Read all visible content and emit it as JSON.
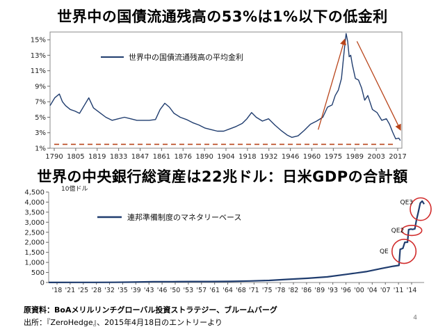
{
  "slide": {
    "title_top": "世界中の国債流通残高の53%は1%以下の低金利",
    "title_bottom": "世界の中央銀行総資産は22兆ドル：日米GDPの合計額",
    "footnote_source": "原資料：BoAメリルリンチグローバル投資ストラテジー、ブルームバーグ",
    "footnote_origin": "出所：『ZeroHedge』、2015年4月18日のエントリーより",
    "page_number": "4"
  },
  "chart_data": [
    {
      "type": "line",
      "legend": "世界中の国債流通残高の平均金利",
      "x_tick_labels": [
        "1790",
        "1805",
        "1819",
        "1833",
        "1847",
        "1861",
        "1876",
        "1890",
        "1904",
        "1918",
        "1932",
        "1946",
        "1960",
        "1975",
        "1989",
        "2003",
        "2017"
      ],
      "y_tick_labels": [
        "1%",
        "3%",
        "5%",
        "7%",
        "9%",
        "11%",
        "13%",
        "15%"
      ],
      "xlim": [
        1790,
        2017
      ],
      "ylim": [
        1,
        16
      ],
      "series": [
        {
          "color": "#1f3c6e",
          "x": [
            1790,
            1793,
            1796,
            1798,
            1800,
            1803,
            1806,
            1809,
            1812,
            1815,
            1818,
            1822,
            1826,
            1830,
            1834,
            1838,
            1842,
            1846,
            1850,
            1854,
            1858,
            1861,
            1864,
            1867,
            1870,
            1874,
            1878,
            1882,
            1886,
            1890,
            1894,
            1898,
            1902,
            1906,
            1910,
            1914,
            1917,
            1920,
            1923,
            1927,
            1931,
            1935,
            1939,
            1943,
            1946,
            1950,
            1954,
            1958,
            1962,
            1966,
            1969,
            1972,
            1974,
            1976,
            1978,
            1979,
            1980,
            1981,
            1982,
            1983,
            1984,
            1985,
            1987,
            1989,
            1991,
            1993,
            1995,
            1998,
            2001,
            2004,
            2007,
            2009,
            2011,
            2013,
            2015,
            2016
          ],
          "y": [
            6.5,
            7.5,
            8.0,
            7.0,
            6.5,
            6.0,
            5.8,
            5.5,
            6.5,
            7.5,
            6.2,
            5.6,
            5.0,
            4.6,
            4.8,
            5.0,
            4.8,
            4.6,
            4.6,
            4.6,
            4.7,
            6.0,
            6.8,
            6.3,
            5.5,
            5.0,
            4.7,
            4.3,
            4.0,
            3.6,
            3.4,
            3.2,
            3.2,
            3.5,
            3.8,
            4.2,
            4.8,
            5.6,
            5.0,
            4.5,
            4.8,
            4.0,
            3.3,
            2.7,
            2.4,
            2.6,
            3.3,
            4.1,
            4.5,
            5.0,
            6.3,
            6.6,
            7.8,
            8.5,
            10.0,
            12.0,
            14.0,
            15.8,
            14.8,
            12.8,
            13.0,
            11.8,
            10.0,
            9.8,
            8.8,
            7.2,
            7.8,
            6.0,
            5.6,
            4.6,
            4.8,
            4.1,
            3.1,
            2.2,
            2.3,
            2.0
          ]
        }
      ],
      "reference_line": {
        "y": 1.5,
        "style": "dashed",
        "color": "#b8441a"
      },
      "arrows": [
        {
          "from": [
            1963,
            3.4
          ],
          "to": [
            1980,
            15.0
          ],
          "color": "#b8441a"
        },
        {
          "from": [
            1988,
            14.8
          ],
          "to": [
            2016,
            3.4
          ],
          "color": "#b8441a"
        }
      ]
    },
    {
      "type": "line",
      "legend": "連邦準備制度のマネタリーベース",
      "unit_label": "10億ドル",
      "x_tick_labels": [
        "'18",
        "'21",
        "'25",
        "'28",
        "'32",
        "'35",
        "'39",
        "'43",
        "'46",
        "'50",
        "'53",
        "'57",
        "'61",
        "'64",
        "'68",
        "'71",
        "'75",
        "'78",
        "'82",
        "'86",
        "'89",
        "'93",
        "'96",
        "'00",
        "'04",
        "'07",
        "'11",
        "'14"
      ],
      "y_tick_labels": [
        "0",
        "500",
        "1,000",
        "1,500",
        "2,000",
        "2,500",
        "3,000",
        "3,500",
        "4,000",
        "4,500"
      ],
      "xlim": [
        1918,
        2015
      ],
      "ylim": [
        0,
        4500
      ],
      "series": [
        {
          "color": "#1f3c6e",
          "x": [
            1918,
            1925,
            1930,
            1935,
            1940,
            1945,
            1950,
            1955,
            1960,
            1965,
            1970,
            1975,
            1980,
            1985,
            1990,
            1995,
            2000,
            2004,
            2007,
            2008.5,
            2008.8,
            2009.5,
            2010,
            2010.7,
            2011,
            2011.6,
            2012,
            2012.6,
            2013,
            2013.5,
            2014,
            2014.5,
            2015
          ],
          "y": [
            5,
            7,
            7,
            10,
            20,
            40,
            42,
            50,
            50,
            55,
            75,
            105,
            160,
            210,
            280,
            410,
            540,
            700,
            810,
            850,
            1650,
            1700,
            2000,
            2000,
            2630,
            2660,
            2640,
            2670,
            3100,
            3500,
            3950,
            4050,
            3900
          ]
        }
      ],
      "annotations": [
        {
          "label": "QE",
          "circle_center": [
            2009.8,
            1550
          ],
          "circle_r": [
            3.1,
            600
          ],
          "label_at": [
            2003.5,
            1550
          ]
        },
        {
          "label": "QE2",
          "circle_center": [
            2011.8,
            2590
          ],
          "circle_r": [
            2.6,
            250
          ],
          "label_at": [
            2006.5,
            2600
          ]
        },
        {
          "label": "QE3",
          "circle_center": [
            2014.1,
            3650
          ],
          "circle_r": [
            2.7,
            560
          ],
          "label_at": [
            2008.8,
            4000
          ]
        }
      ],
      "annotation_color": "#d12b2b"
    }
  ]
}
